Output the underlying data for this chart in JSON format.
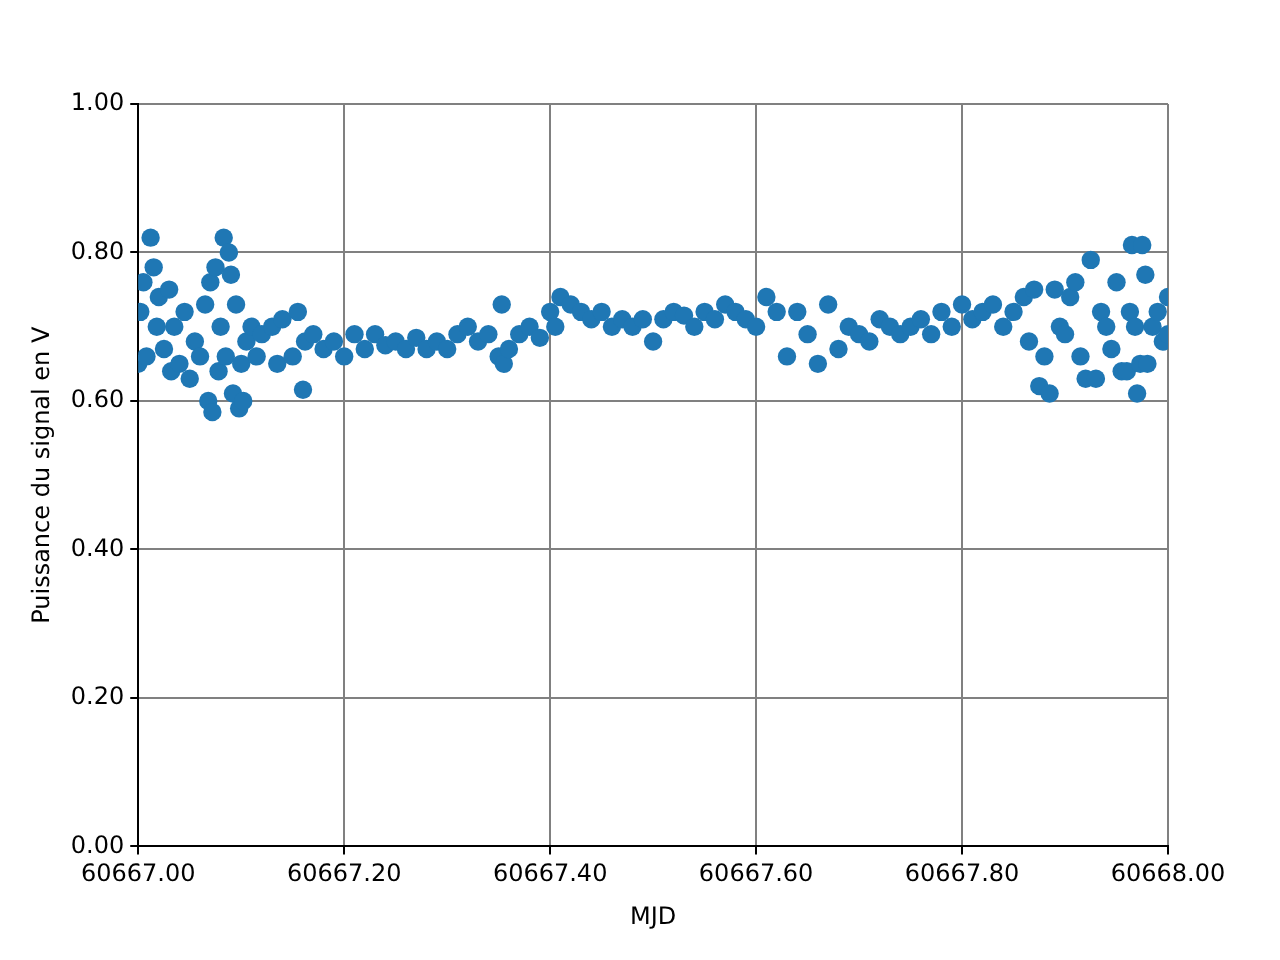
{
  "chart_data": {
    "type": "scatter",
    "xlabel": "MJD",
    "ylabel": "Puissance du signal en V",
    "series": [
      {
        "color": "#1f77b4",
        "x": [
          60667.0,
          60667.002,
          60667.005,
          60667.008,
          60667.012,
          60667.015,
          60667.018,
          60667.02,
          60667.025,
          60667.03,
          60667.032,
          60667.035,
          60667.04,
          60667.045,
          60667.05,
          60667.055,
          60667.06,
          60667.065,
          60667.068,
          60667.07,
          60667.072,
          60667.075,
          60667.078,
          60667.08,
          60667.083,
          60667.085,
          60667.088,
          60667.09,
          60667.092,
          60667.095,
          60667.098,
          60667.1,
          60667.102,
          60667.105,
          60667.11,
          60667.115,
          60667.12,
          60667.13,
          60667.135,
          60667.14,
          60667.15,
          60667.155,
          60667.16,
          60667.162,
          60667.17,
          60667.18,
          60667.19,
          60667.2,
          60667.21,
          60667.22,
          60667.23,
          60667.24,
          60667.25,
          60667.26,
          60667.27,
          60667.28,
          60667.29,
          60667.3,
          60667.31,
          60667.32,
          60667.33,
          60667.34,
          60667.35,
          60667.353,
          60667.355,
          60667.36,
          60667.37,
          60667.38,
          60667.39,
          60667.4,
          60667.405,
          60667.41,
          60667.42,
          60667.43,
          60667.44,
          60667.45,
          60667.46,
          60667.47,
          60667.48,
          60667.49,
          60667.5,
          60667.51,
          60667.52,
          60667.53,
          60667.54,
          60667.55,
          60667.56,
          60667.57,
          60667.58,
          60667.59,
          60667.6,
          60667.61,
          60667.62,
          60667.63,
          60667.64,
          60667.65,
          60667.66,
          60667.67,
          60667.68,
          60667.69,
          60667.7,
          60667.71,
          60667.72,
          60667.73,
          60667.74,
          60667.75,
          60667.76,
          60667.77,
          60667.78,
          60667.79,
          60667.8,
          60667.81,
          60667.82,
          60667.83,
          60667.84,
          60667.85,
          60667.86,
          60667.865,
          60667.87,
          60667.875,
          60667.88,
          60667.885,
          60667.89,
          60667.895,
          60667.9,
          60667.905,
          60667.91,
          60667.915,
          60667.92,
          60667.925,
          60667.93,
          60667.935,
          60667.94,
          60667.945,
          60667.95,
          60667.955,
          60667.96,
          60667.963,
          60667.965,
          60667.968,
          60667.97,
          60667.973,
          60667.975,
          60667.978,
          60667.98,
          60667.985,
          60667.99,
          60667.995,
          60668.0,
          60668.0
        ],
        "values": [
          0.65,
          0.72,
          0.76,
          0.66,
          0.82,
          0.78,
          0.7,
          0.74,
          0.67,
          0.75,
          0.64,
          0.7,
          0.65,
          0.72,
          0.63,
          0.68,
          0.66,
          0.73,
          0.6,
          0.76,
          0.585,
          0.78,
          0.64,
          0.7,
          0.82,
          0.66,
          0.8,
          0.77,
          0.61,
          0.73,
          0.59,
          0.65,
          0.6,
          0.68,
          0.7,
          0.66,
          0.69,
          0.7,
          0.65,
          0.71,
          0.66,
          0.72,
          0.615,
          0.68,
          0.69,
          0.67,
          0.68,
          0.66,
          0.69,
          0.67,
          0.69,
          0.675,
          0.68,
          0.67,
          0.685,
          0.67,
          0.68,
          0.67,
          0.69,
          0.7,
          0.68,
          0.69,
          0.66,
          0.73,
          0.65,
          0.67,
          0.69,
          0.7,
          0.685,
          0.72,
          0.7,
          0.74,
          0.73,
          0.72,
          0.71,
          0.72,
          0.7,
          0.71,
          0.7,
          0.71,
          0.68,
          0.71,
          0.72,
          0.715,
          0.7,
          0.72,
          0.71,
          0.73,
          0.72,
          0.71,
          0.7,
          0.74,
          0.72,
          0.66,
          0.72,
          0.69,
          0.65,
          0.73,
          0.67,
          0.7,
          0.69,
          0.68,
          0.71,
          0.7,
          0.69,
          0.7,
          0.71,
          0.69,
          0.72,
          0.7,
          0.73,
          0.71,
          0.72,
          0.73,
          0.7,
          0.72,
          0.74,
          0.68,
          0.75,
          0.62,
          0.66,
          0.61,
          0.75,
          0.7,
          0.69,
          0.74,
          0.76,
          0.66,
          0.63,
          0.79,
          0.63,
          0.72,
          0.7,
          0.67,
          0.76,
          0.64,
          0.64,
          0.72,
          0.81,
          0.7,
          0.61,
          0.65,
          0.81,
          0.77,
          0.65,
          0.7,
          0.72,
          0.68,
          0.74,
          0.69
        ]
      }
    ],
    "xlim": [
      60667.0,
      60668.0
    ],
    "xticks": [
      {
        "value": 60667.0,
        "label": "60667.00"
      },
      {
        "value": 60667.2,
        "label": "60667.20"
      },
      {
        "value": 60667.4,
        "label": "60667.40"
      },
      {
        "value": 60667.6,
        "label": "60667.60"
      },
      {
        "value": 60667.8,
        "label": "60667.80"
      },
      {
        "value": 60668.0,
        "label": "60668.00"
      }
    ],
    "ylim": [
      0,
      1
    ],
    "yticks": [
      {
        "value": 0,
        "label": "0.00"
      },
      {
        "value": 0.2,
        "label": "0.20"
      },
      {
        "value": 0.4,
        "label": "0.40"
      },
      {
        "value": 0.6,
        "label": "0.60"
      },
      {
        "value": 0.8,
        "label": "0.80"
      },
      {
        "value": 1,
        "label": "1.00"
      }
    ],
    "grid": true,
    "marker": "circle",
    "legend": false
  }
}
